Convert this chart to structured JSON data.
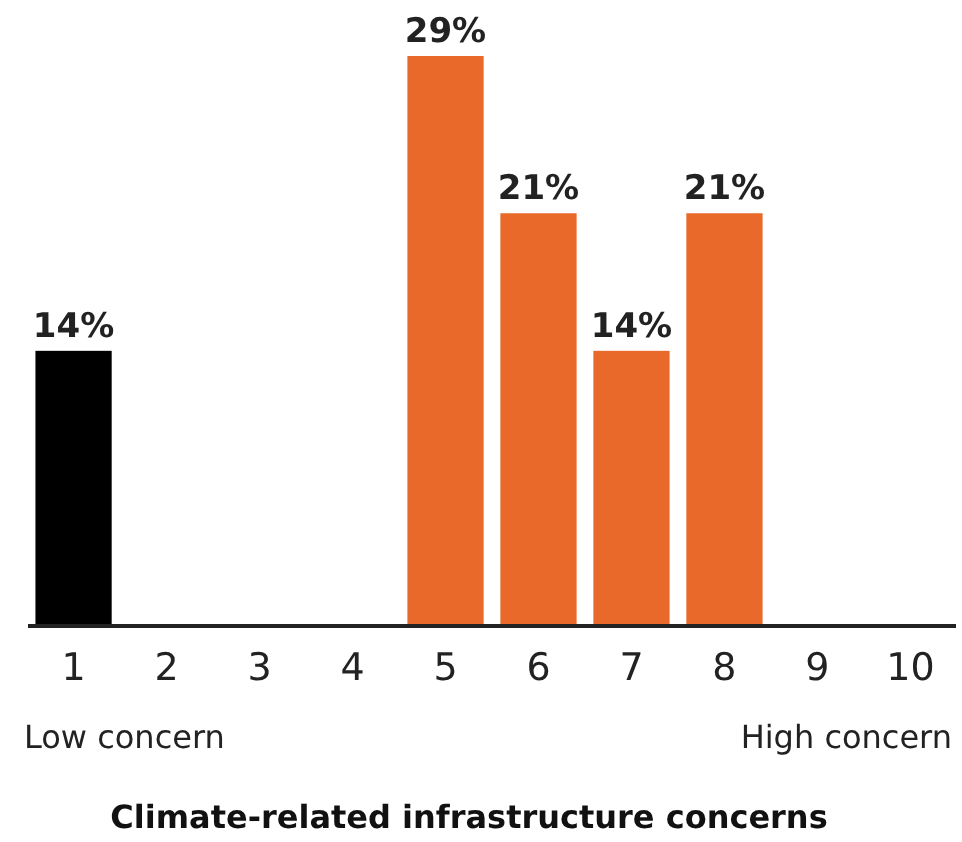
{
  "chart_data": {
    "type": "bar",
    "xlabel": "Climate-related infrastructure concerns",
    "categories": [
      "1",
      "2",
      "3",
      "4",
      "5",
      "6",
      "7",
      "8",
      "9",
      "10"
    ],
    "values": [
      14,
      0,
      0,
      0,
      29,
      21,
      14,
      21,
      0,
      0
    ],
    "colors": [
      "#000000",
      "#e8692a",
      "#e8692a",
      "#e8692a",
      "#e8692a",
      "#e8692a",
      "#e8692a",
      "#e8692a",
      "#e8692a",
      "#e8692a"
    ],
    "value_labels": [
      "14%",
      null,
      null,
      null,
      "29%",
      "21%",
      "14%",
      "21%",
      null,
      null
    ],
    "ylim": [
      0,
      29
    ],
    "tick_labels": "x",
    "annotations": [
      "Low concern",
      "High concern"
    ]
  }
}
